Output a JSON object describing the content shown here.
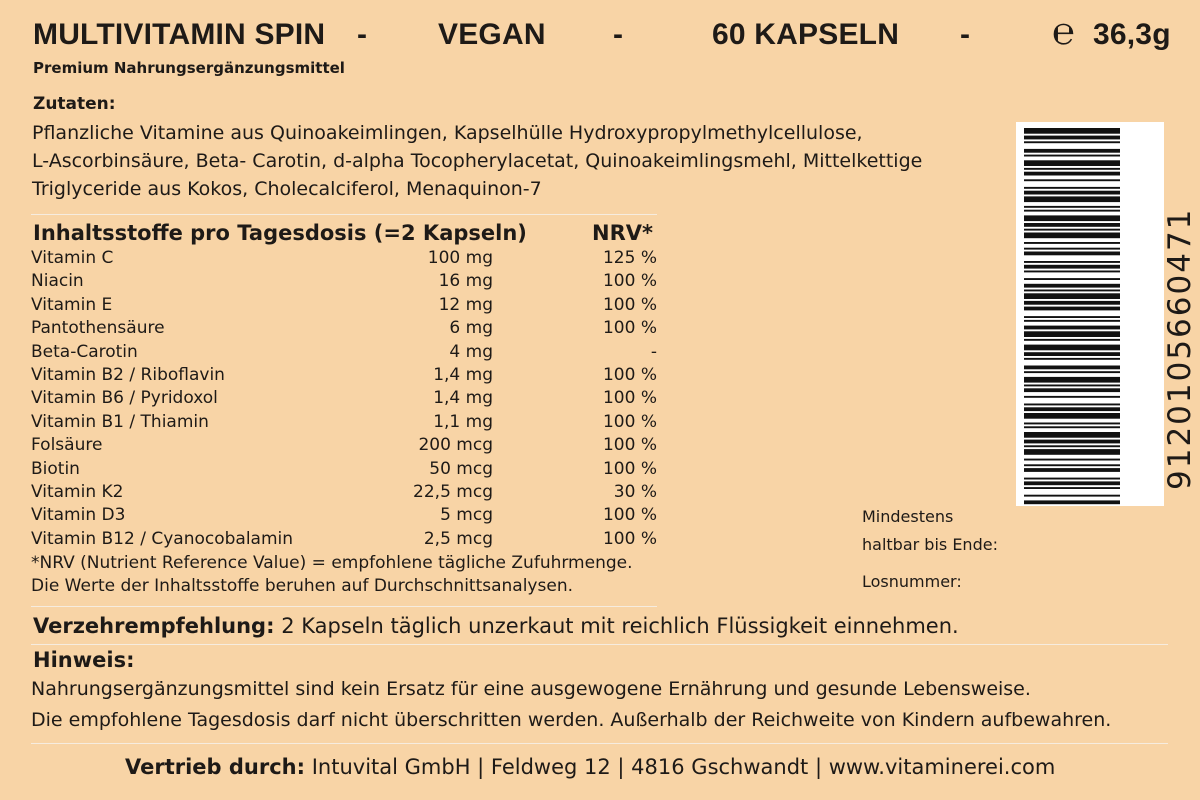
{
  "header": {
    "product_name": "MULTIVITAMIN SPIN",
    "sep1": "-",
    "vegan": "VEGAN",
    "sep2": "-",
    "count": "60 KAPSELN",
    "sep3": "-",
    "estimate_sign": "℮",
    "weight": "36,3g"
  },
  "subtitle": "Premium Nahrungsergänzungsmittel",
  "ingredients": {
    "label": "Zutaten:",
    "lines": [
      "Pflanzliche Vitamine aus Quinoakeimlingen, Kapselhülle Hydroxypropylmethylcellulose,",
      "L-Ascorbinsäure, Beta- Carotin, d-alpha Tocopherylacetat, Quinoakeimlingsmehl, Mittelkettige",
      "Triglyceride aus Kokos, Cholecalciferol, Menaquinon-7"
    ]
  },
  "nutrients": {
    "header": "Inhaltsstoffe pro Tagesdosis  (=2 Kapseln)",
    "nrv_header": "NRV*",
    "rows": [
      {
        "name": "Vitamin C",
        "amount": "100 mg",
        "nrv": "125 %"
      },
      {
        "name": "Niacin",
        "amount": "16 mg",
        "nrv": "100 %"
      },
      {
        "name": "Vitamin E",
        "amount": "12 mg",
        "nrv": "100 %"
      },
      {
        "name": "Pantothensäure",
        "amount": "6 mg",
        "nrv": "100 %"
      },
      {
        "name": "Beta-Carotin",
        "amount": "4 mg",
        "nrv": "-"
      },
      {
        "name": "Vitamin B2 / Riboflavin",
        "amount": "1,4 mg",
        "nrv": "100 %"
      },
      {
        "name": "Vitamin B6 / Pyridoxol",
        "amount": "1,4 mg",
        "nrv": "100 %"
      },
      {
        "name": "Vitamin B1 / Thiamin",
        "amount": "1,1 mg",
        "nrv": "100 %"
      },
      {
        "name": "Folsäure",
        "amount": "200 mcg",
        "nrv": "100 %"
      },
      {
        "name": "Biotin",
        "amount": "50 mcg",
        "nrv": "100 %"
      },
      {
        "name": "Vitamin K2",
        "amount": "22,5 mcg",
        "nrv": "30 %"
      },
      {
        "name": "Vitamin D3",
        "amount": "5 mcg",
        "nrv": "100 %"
      },
      {
        "name": "Vitamin B12 / Cyanocobalamin",
        "amount": "2,5 mcg",
        "nrv": "100 %"
      }
    ],
    "footnote1": "*NRV (Nutrient Reference Value)  = empfohlene tägliche Zufuhrmenge.",
    "footnote2": "Die Werte der Inhaltsstoffe beruhen auf Durchschnittsanalysen."
  },
  "recommendation": {
    "label": "Verzehrempfehlung:",
    "text": "2 Kapseln täglich unzerkaut mit reichlich Flüssigkeit einnehmen."
  },
  "notice": {
    "label": "Hinweis:",
    "line1": "Nahrungsergänzungsmittel sind kein Ersatz für eine ausgewogene Ernährung und gesunde Lebensweise.",
    "line2": "Die empfohlene Tagesdosis darf nicht überschritten werden. Außerhalb der Reichweite von Kindern aufbewahren."
  },
  "distribution": {
    "label": "Vertrieb durch:",
    "text": "Intuvital GmbH | Feldweg 12 | 4816 Gschwandt | www.vitaminerei.com"
  },
  "side": {
    "best_before_1": "Mindestens",
    "best_before_2": "haltbar bis Ende:",
    "lot": "Losnummer:"
  },
  "barcode": {
    "number": "9120105660471"
  }
}
